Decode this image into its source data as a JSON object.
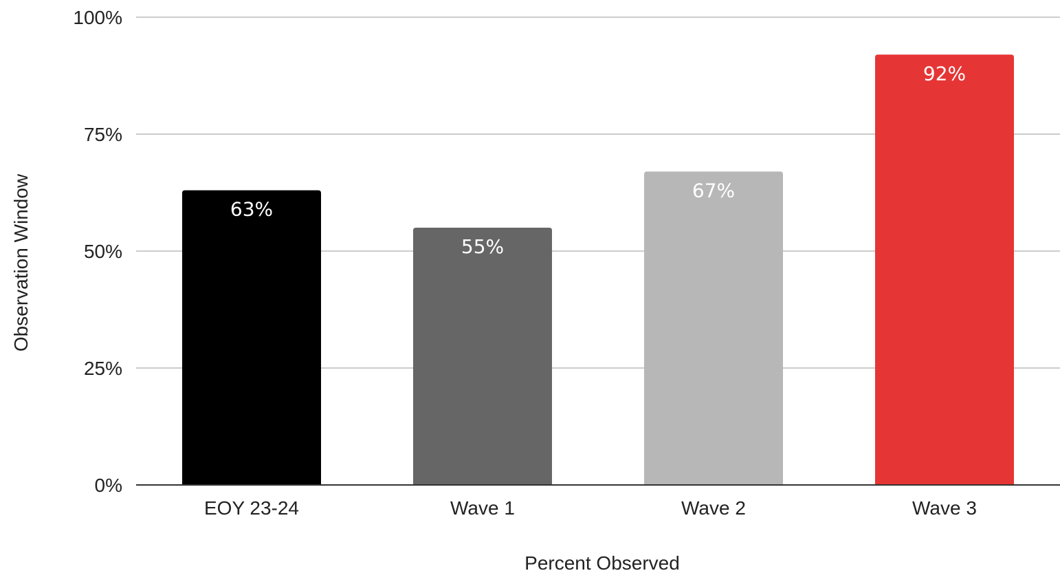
{
  "chart_data": {
    "type": "bar",
    "categories": [
      "EOY 23-24",
      "Wave 1",
      "Wave 2",
      "Wave 3"
    ],
    "values": [
      63,
      55,
      67,
      92
    ],
    "data_labels": [
      "63%",
      "55%",
      "67%",
      "92%"
    ],
    "colors": [
      "#000000",
      "#666666",
      "#b7b7b7",
      "#e63535"
    ],
    "title": "",
    "xlabel": "Percent Observed",
    "ylabel": "Observation Window",
    "ylim": [
      0,
      100
    ],
    "y_ticks": [
      0,
      25,
      50,
      75,
      100
    ],
    "y_tick_labels": [
      "0%",
      "25%",
      "50%",
      "75%",
      "100%"
    ],
    "grid": true,
    "legend": "none"
  }
}
